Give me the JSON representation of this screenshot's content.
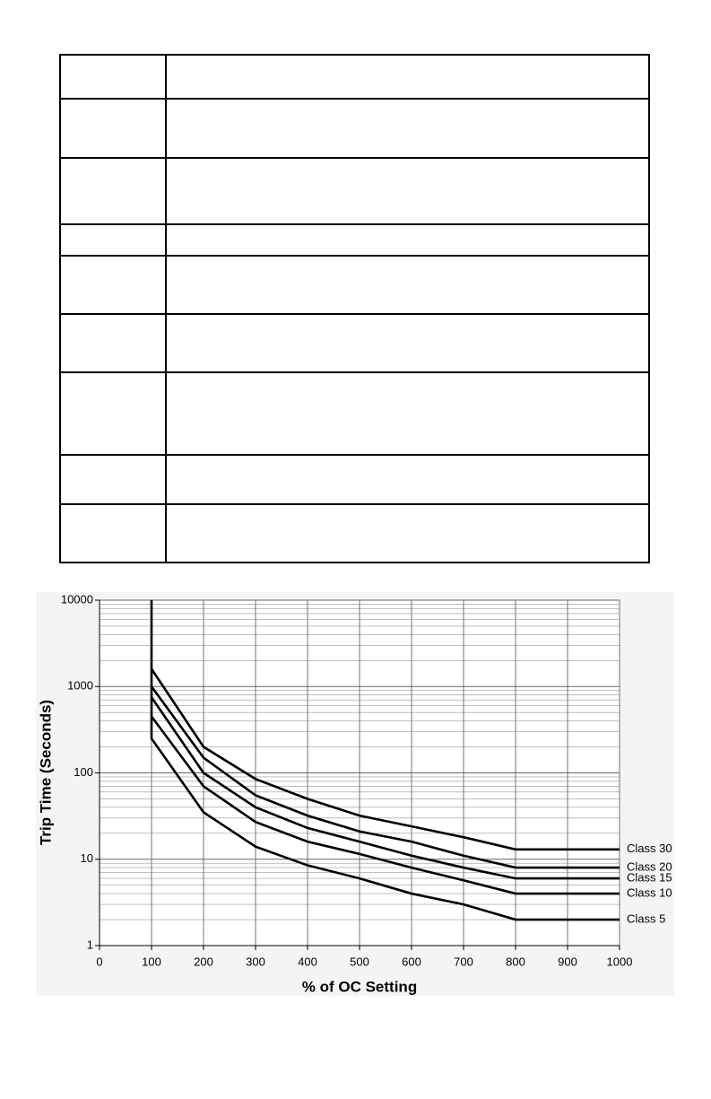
{
  "chart_data": {
    "type": "line",
    "xlabel": "% of OC Setting",
    "ylabel": "Trip Time (Seconds)",
    "xlim": [
      0,
      1000
    ],
    "xticks": [
      0,
      100,
      200,
      300,
      400,
      500,
      600,
      700,
      800,
      900,
      1000
    ],
    "ylim": [
      1,
      10000
    ],
    "yticks": [
      1,
      10,
      100,
      1000,
      10000
    ],
    "log_y": true,
    "grid": true,
    "series": [
      {
        "name": "Class 30",
        "color": "#000000",
        "x": [
          100,
          200,
          300,
          400,
          500,
          600,
          700,
          800,
          1000
        ],
        "values": [
          1600,
          200,
          85,
          50,
          32,
          24,
          18,
          13,
          13
        ]
      },
      {
        "name": "Class 20",
        "color": "#000000",
        "x": [
          100,
          200,
          300,
          400,
          500,
          600,
          700,
          800,
          1000
        ],
        "values": [
          1000,
          150,
          55,
          32,
          21,
          16,
          11,
          8,
          8
        ]
      },
      {
        "name": "Class 15",
        "color": "#000000",
        "x": [
          100,
          200,
          300,
          400,
          500,
          600,
          700,
          800,
          1000
        ],
        "values": [
          750,
          100,
          40,
          23,
          16,
          11,
          8,
          6,
          6
        ]
      },
      {
        "name": "Class 10",
        "color": "#000000",
        "x": [
          100,
          200,
          300,
          400,
          500,
          600,
          700,
          800,
          1000
        ],
        "values": [
          450,
          70,
          27,
          16,
          11.5,
          8,
          5.7,
          4,
          4
        ]
      },
      {
        "name": "Class 5",
        "color": "#000000",
        "x": [
          100,
          100,
          200,
          300,
          400,
          500,
          600,
          700,
          800,
          1000
        ],
        "values": [
          10000,
          250,
          35,
          14,
          8.5,
          6,
          4,
          3,
          2,
          2
        ]
      }
    ]
  }
}
